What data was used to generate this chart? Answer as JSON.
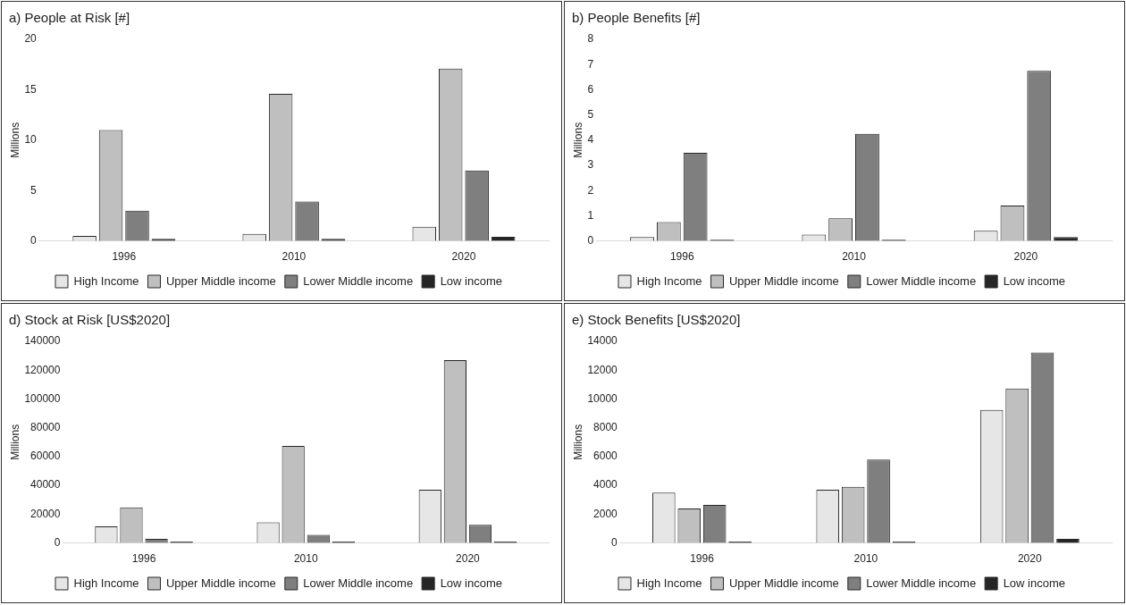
{
  "chart_data": [
    {
      "type": "bar",
      "title": "a) People at Risk [#]",
      "ylabel": "Millions",
      "categories": [
        "1996",
        "2010",
        "2020"
      ],
      "ylim": [
        0,
        20
      ],
      "yticks": [
        0,
        5,
        10,
        15,
        20
      ],
      "grid": false,
      "legend": "bottom",
      "series": [
        {
          "name": "High Income",
          "color": "#e6e6e6",
          "values": [
            0.5,
            0.7,
            1.4
          ]
        },
        {
          "name": "Upper Middle income",
          "color": "#bfbfbf",
          "values": [
            11.0,
            14.6,
            17.1
          ]
        },
        {
          "name": "Lower Middle income",
          "color": "#7f7f7f",
          "values": [
            3.0,
            3.9,
            7.0
          ]
        },
        {
          "name": "Low income",
          "color": "#262626",
          "values": [
            0.2,
            0.2,
            0.4
          ]
        }
      ]
    },
    {
      "type": "bar",
      "title": "b) People Benefits [#]",
      "ylabel": "Millions",
      "categories": [
        "1996",
        "2010",
        "2020"
      ],
      "ylim": [
        0,
        8
      ],
      "yticks": [
        0,
        1,
        2,
        3,
        4,
        5,
        6,
        7,
        8
      ],
      "grid": false,
      "legend": "bottom",
      "series": [
        {
          "name": "High Income",
          "color": "#e6e6e6",
          "values": [
            0.15,
            0.25,
            0.4
          ]
        },
        {
          "name": "Upper Middle income",
          "color": "#bfbfbf",
          "values": [
            0.75,
            0.9,
            1.4
          ]
        },
        {
          "name": "Lower Middle income",
          "color": "#7f7f7f",
          "values": [
            3.5,
            4.25,
            6.75
          ]
        },
        {
          "name": "Low income",
          "color": "#262626",
          "values": [
            0.05,
            0.05,
            0.15
          ]
        }
      ]
    },
    {
      "type": "bar",
      "title": "d) Stock at Risk [US$2020]",
      "ylabel": "Millions",
      "categories": [
        "1996",
        "2010",
        "2020"
      ],
      "ylim": [
        0,
        140000
      ],
      "yticks": [
        0,
        20000,
        40000,
        60000,
        80000,
        100000,
        120000,
        140000
      ],
      "grid": false,
      "legend": "bottom",
      "series": [
        {
          "name": "High Income",
          "color": "#e6e6e6",
          "values": [
            11500,
            14300,
            37000
          ]
        },
        {
          "name": "Upper Middle income",
          "color": "#bfbfbf",
          "values": [
            24700,
            67400,
            127000
          ]
        },
        {
          "name": "Lower Middle income",
          "color": "#7f7f7f",
          "values": [
            2900,
            5700,
            12600
          ]
        },
        {
          "name": "Low income",
          "color": "#262626",
          "values": [
            1000,
            1000,
            1000
          ]
        }
      ]
    },
    {
      "type": "bar",
      "title": "e) Stock Benefits [US$2020]",
      "ylabel": "Millions",
      "categories": [
        "1996",
        "2010",
        "2020"
      ],
      "ylim": [
        0,
        14000
      ],
      "yticks": [
        0,
        2000,
        4000,
        6000,
        8000,
        10000,
        12000,
        14000
      ],
      "grid": false,
      "legend": "bottom",
      "series": [
        {
          "name": "High Income",
          "color": "#e6e6e6",
          "values": [
            3500,
            3700,
            9240
          ]
        },
        {
          "name": "Upper Middle income",
          "color": "#bfbfbf",
          "values": [
            2400,
            3900,
            10730
          ]
        },
        {
          "name": "Lower Middle income",
          "color": "#7f7f7f",
          "values": [
            2650,
            5800,
            13220
          ]
        },
        {
          "name": "Low income",
          "color": "#262626",
          "values": [
            100,
            100,
            290
          ]
        }
      ]
    }
  ]
}
